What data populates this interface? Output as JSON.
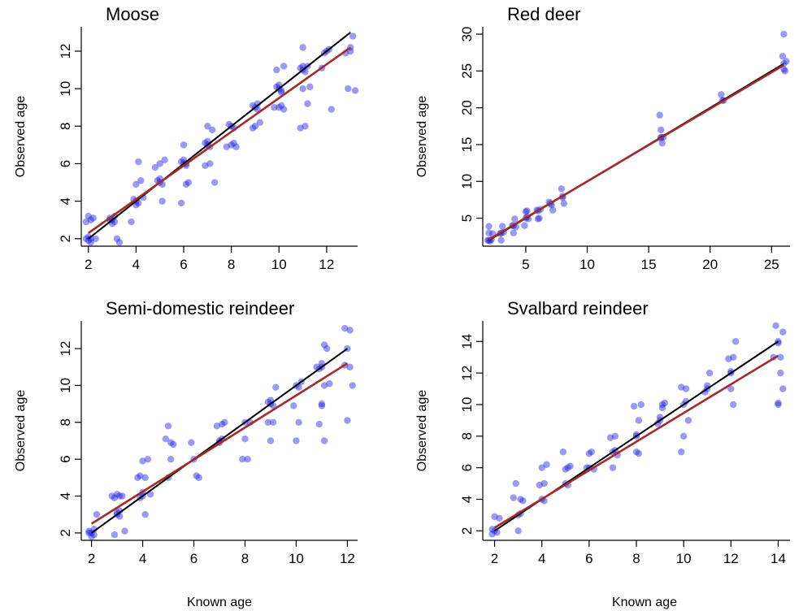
{
  "figure": {
    "xlabel_left": "Known age",
    "xlabel_right": "Known age",
    "colors": {
      "points": "#1f1fe6",
      "identity_line": "#000000",
      "fit_line": "#a52a2a"
    }
  },
  "chart_data": [
    {
      "type": "scatter",
      "title": "Moose",
      "xlabel": "",
      "ylabel": "Observed age",
      "xlim": [
        1.7,
        13.3
      ],
      "ylim": [
        1.6,
        13.3
      ],
      "xticks": [
        2,
        4,
        6,
        8,
        10,
        12
      ],
      "yticks": [
        2,
        4,
        6,
        8,
        10,
        12
      ],
      "identity_line": {
        "x": [
          2,
          13
        ],
        "y": [
          2,
          13
        ]
      },
      "fit_line": {
        "x": [
          2,
          13
        ],
        "y": [
          2.3,
          12.2
        ]
      },
      "points": [
        [
          1.9,
          2
        ],
        [
          2,
          1.9
        ],
        [
          2.1,
          2
        ],
        [
          1.9,
          2.9
        ],
        [
          2.1,
          3
        ],
        [
          2,
          3.2
        ],
        [
          2.2,
          3.1
        ],
        [
          2.3,
          2
        ],
        [
          2,
          2.1
        ],
        [
          2.1,
          1.8
        ],
        [
          3,
          3
        ],
        [
          3.1,
          2.9
        ],
        [
          2.9,
          3.1
        ],
        [
          3.2,
          2
        ],
        [
          3.3,
          1.8
        ],
        [
          3,
          2.8
        ],
        [
          3.1,
          3.2
        ],
        [
          2.9,
          3
        ],
        [
          4,
          4
        ],
        [
          4.1,
          3.9
        ],
        [
          3.9,
          4.1
        ],
        [
          4,
          4.9
        ],
        [
          4.2,
          5.1
        ],
        [
          4.1,
          6.1
        ],
        [
          3.8,
          2.9
        ],
        [
          4.3,
          4.2
        ],
        [
          4,
          3.8
        ],
        [
          5,
          5
        ],
        [
          5.1,
          4.9
        ],
        [
          4.9,
          5.1
        ],
        [
          5,
          6
        ],
        [
          5.2,
          6.2
        ],
        [
          5.1,
          4
        ],
        [
          4.8,
          5.8
        ],
        [
          5,
          5.2
        ],
        [
          6,
          6
        ],
        [
          6.1,
          5.9
        ],
        [
          5.9,
          6.1
        ],
        [
          6,
          7
        ],
        [
          6.2,
          5
        ],
        [
          6.1,
          4.9
        ],
        [
          5.9,
          3.9
        ],
        [
          6,
          6.2
        ],
        [
          6.1,
          6
        ],
        [
          7,
          7
        ],
        [
          7.1,
          6.9
        ],
        [
          6.9,
          7.1
        ],
        [
          7,
          8
        ],
        [
          7.2,
          7.8
        ],
        [
          7.1,
          6
        ],
        [
          6.9,
          5.9
        ],
        [
          7.3,
          5
        ],
        [
          7,
          7.2
        ],
        [
          8,
          8
        ],
        [
          8.1,
          7.9
        ],
        [
          7.9,
          8.1
        ],
        [
          8,
          7
        ],
        [
          8.2,
          6.9
        ],
        [
          8.1,
          7.1
        ],
        [
          7.8,
          6.9
        ],
        [
          9,
          9
        ],
        [
          9.1,
          8.9
        ],
        [
          8.9,
          9.1
        ],
        [
          9,
          8
        ],
        [
          9.2,
          8.2
        ],
        [
          8.9,
          7.9
        ],
        [
          9.1,
          9.2
        ],
        [
          10,
          10
        ],
        [
          10.1,
          9.9
        ],
        [
          9.9,
          10.1
        ],
        [
          10,
          9
        ],
        [
          10.2,
          8.9
        ],
        [
          10.1,
          9.1
        ],
        [
          9.9,
          11
        ],
        [
          10.2,
          11.2
        ],
        [
          10,
          10.2
        ],
        [
          10.1,
          9.8
        ],
        [
          9.8,
          9
        ],
        [
          11,
          11
        ],
        [
          11.1,
          10.9
        ],
        [
          10.9,
          11.1
        ],
        [
          11,
          10
        ],
        [
          11.2,
          9.2
        ],
        [
          11.1,
          8
        ],
        [
          10.9,
          7.9
        ],
        [
          11,
          12.2
        ],
        [
          11.2,
          11.2
        ],
        [
          11.3,
          10.1
        ],
        [
          11,
          11.2
        ],
        [
          12,
          12
        ],
        [
          12.1,
          12.1
        ],
        [
          11.9,
          11.9
        ],
        [
          12.2,
          8.9
        ],
        [
          11.8,
          11.1
        ],
        [
          13,
          12
        ],
        [
          13.1,
          12.8
        ],
        [
          12.9,
          10
        ],
        [
          13.2,
          9.9
        ],
        [
          12.8,
          11.9
        ],
        [
          13,
          12.2
        ]
      ]
    },
    {
      "type": "scatter",
      "title": "Red deer",
      "xlabel": "",
      "ylabel": "Observed age",
      "xlim": [
        1.5,
        26.5
      ],
      "ylim": [
        1.2,
        31
      ],
      "xticks": [
        5,
        10,
        15,
        20,
        25
      ],
      "yticks": [
        5,
        10,
        15,
        20,
        25,
        30
      ],
      "identity_line": {
        "x": [
          2,
          26
        ],
        "y": [
          2,
          26
        ]
      },
      "fit_line": {
        "x": [
          2,
          26
        ],
        "y": [
          2.1,
          25.8
        ]
      },
      "points": [
        [
          2,
          2
        ],
        [
          2.1,
          1.9
        ],
        [
          2,
          3
        ],
        [
          2.2,
          2.1
        ],
        [
          1.9,
          2
        ],
        [
          2,
          3.9
        ],
        [
          2.3,
          2.9
        ],
        [
          3,
          3
        ],
        [
          3.1,
          3.9
        ],
        [
          2.9,
          2.9
        ],
        [
          3,
          2
        ],
        [
          3.2,
          3.1
        ],
        [
          4,
          4
        ],
        [
          4.1,
          4.9
        ],
        [
          3.9,
          4
        ],
        [
          4,
          3
        ],
        [
          4.2,
          3.8
        ],
        [
          5,
          5
        ],
        [
          5.1,
          6
        ],
        [
          4.9,
          4
        ],
        [
          5,
          5.9
        ],
        [
          5.2,
          4.9
        ],
        [
          5.1,
          5.2
        ],
        [
          6,
          6
        ],
        [
          6.1,
          5
        ],
        [
          5.9,
          6.1
        ],
        [
          6,
          4.9
        ],
        [
          6.2,
          6.2
        ],
        [
          7,
          7
        ],
        [
          7.1,
          6.8
        ],
        [
          6.9,
          7.2
        ],
        [
          7.2,
          6.1
        ],
        [
          8,
          8
        ],
        [
          8.1,
          7
        ],
        [
          7.9,
          9
        ],
        [
          8,
          7.8
        ],
        [
          16,
          16
        ],
        [
          16.1,
          15.2
        ],
        [
          15.9,
          19
        ],
        [
          16,
          17
        ],
        [
          16.2,
          16
        ],
        [
          16,
          15.9
        ],
        [
          21,
          21
        ],
        [
          21.1,
          21
        ],
        [
          20.9,
          21.8
        ],
        [
          26,
          26
        ],
        [
          26.1,
          25
        ],
        [
          25.9,
          27
        ],
        [
          26,
          30
        ],
        [
          26.2,
          26.3
        ],
        [
          26,
          25.2
        ]
      ]
    },
    {
      "type": "scatter",
      "title": "Semi-domestic reindeer",
      "xlabel": "",
      "ylabel": "Observed age",
      "xlim": [
        1.6,
        12.4
      ],
      "ylim": [
        1.6,
        13.5
      ],
      "xticks": [
        2,
        4,
        6,
        8,
        10,
        12
      ],
      "yticks": [
        2,
        4,
        6,
        8,
        10,
        12
      ],
      "identity_line": {
        "x": [
          2,
          12
        ],
        "y": [
          2,
          12
        ]
      },
      "fit_line": {
        "x": [
          2,
          12
        ],
        "y": [
          2.5,
          11.2
        ]
      },
      "points": [
        [
          2,
          2
        ],
        [
          2.1,
          1.9
        ],
        [
          1.9,
          2.1
        ],
        [
          2,
          1.8
        ],
        [
          2.2,
          3
        ],
        [
          2.1,
          2.2
        ],
        [
          1.9,
          2
        ],
        [
          3,
          3
        ],
        [
          3.1,
          4
        ],
        [
          2.9,
          3.9
        ],
        [
          3,
          4.1
        ],
        [
          3.2,
          4
        ],
        [
          3.1,
          2.9
        ],
        [
          2.9,
          1.9
        ],
        [
          3.3,
          2.1
        ],
        [
          3,
          3.1
        ],
        [
          2.8,
          4
        ],
        [
          3.1,
          3.2
        ],
        [
          4,
          4
        ],
        [
          4.1,
          5
        ],
        [
          3.9,
          5.1
        ],
        [
          4,
          5.9
        ],
        [
          4.2,
          6
        ],
        [
          4.1,
          3
        ],
        [
          3.9,
          3.9
        ],
        [
          4.3,
          4.1
        ],
        [
          4,
          4.2
        ],
        [
          3.8,
          5
        ],
        [
          5,
          5
        ],
        [
          5.1,
          6.9
        ],
        [
          4.9,
          7.1
        ],
        [
          5,
          7.8
        ],
        [
          5.2,
          6.8
        ],
        [
          5.1,
          6
        ],
        [
          6,
          6
        ],
        [
          6.2,
          5
        ],
        [
          5.9,
          6.9
        ],
        [
          6.1,
          5.1
        ],
        [
          7,
          7
        ],
        [
          7.1,
          7.9
        ],
        [
          6.9,
          7.8
        ],
        [
          7,
          6.9
        ],
        [
          7.2,
          8
        ],
        [
          7.1,
          7.1
        ],
        [
          8,
          8
        ],
        [
          8.1,
          6
        ],
        [
          7.9,
          6
        ],
        [
          8.2,
          8
        ],
        [
          8,
          7.1
        ],
        [
          9,
          9
        ],
        [
          9.1,
          8
        ],
        [
          8.9,
          9.1
        ],
        [
          9,
          7
        ],
        [
          9.2,
          9.9
        ],
        [
          9.1,
          8.9
        ],
        [
          8.9,
          8
        ],
        [
          9,
          9.2
        ],
        [
          10,
          10
        ],
        [
          10.1,
          9.9
        ],
        [
          9.9,
          8.9
        ],
        [
          10,
          7
        ],
        [
          10.2,
          10.2
        ],
        [
          10.1,
          8
        ],
        [
          11,
          11
        ],
        [
          11.1,
          10
        ],
        [
          10.9,
          10.9
        ],
        [
          11,
          9
        ],
        [
          11.2,
          12
        ],
        [
          11.1,
          7
        ],
        [
          10.9,
          7.9
        ],
        [
          11,
          11.2
        ],
        [
          11.3,
          10.1
        ],
        [
          10.8,
          11
        ],
        [
          11.1,
          12.2
        ],
        [
          11,
          8.9
        ],
        [
          12,
          12
        ],
        [
          12.1,
          11
        ],
        [
          11.9,
          13.1
        ],
        [
          12,
          8.1
        ],
        [
          12.2,
          10
        ],
        [
          11.9,
          11.1
        ],
        [
          12.1,
          13
        ]
      ]
    },
    {
      "type": "scatter",
      "title": "Svalbard reindeer",
      "xlabel": "",
      "ylabel": "Observed age",
      "xlim": [
        1.5,
        14.5
      ],
      "ylim": [
        1.4,
        15.3
      ],
      "xticks": [
        2,
        4,
        6,
        8,
        10,
        12,
        14
      ],
      "yticks": [
        2,
        4,
        6,
        8,
        10,
        12,
        14
      ],
      "identity_line": {
        "x": [
          2,
          14
        ],
        "y": [
          2,
          14
        ]
      },
      "fit_line": {
        "x": [
          2,
          14
        ],
        "y": [
          2.2,
          13.1
        ]
      },
      "points": [
        [
          2,
          2
        ],
        [
          2.1,
          1.9
        ],
        [
          1.9,
          2.1
        ],
        [
          2,
          2.9
        ],
        [
          2.2,
          2.8
        ],
        [
          1.9,
          1.8
        ],
        [
          3,
          3
        ],
        [
          3.1,
          4
        ],
        [
          2.9,
          5
        ],
        [
          3,
          2
        ],
        [
          3.2,
          3.9
        ],
        [
          3.1,
          3.1
        ],
        [
          2.8,
          4.1
        ],
        [
          4,
          4
        ],
        [
          4.1,
          5
        ],
        [
          3.9,
          4.9
        ],
        [
          4,
          6
        ],
        [
          4.2,
          6.2
        ],
        [
          4.1,
          3.9
        ],
        [
          5,
          5
        ],
        [
          5.1,
          6
        ],
        [
          4.9,
          7
        ],
        [
          5,
          5.9
        ],
        [
          5.2,
          6.1
        ],
        [
          5.1,
          4.9
        ],
        [
          6,
          6
        ],
        [
          6.1,
          7
        ],
        [
          5.9,
          6
        ],
        [
          6.2,
          5.9
        ],
        [
          6,
          6.9
        ],
        [
          7,
          7
        ],
        [
          7.1,
          8
        ],
        [
          6.9,
          7.9
        ],
        [
          7,
          6
        ],
        [
          7.2,
          6.8
        ],
        [
          7.1,
          7.1
        ],
        [
          8,
          8
        ],
        [
          8.1,
          9
        ],
        [
          7.9,
          9.9
        ],
        [
          8,
          7
        ],
        [
          8.2,
          10
        ],
        [
          8.1,
          6.9
        ],
        [
          8,
          8.1
        ],
        [
          9,
          9
        ],
        [
          9.1,
          10
        ],
        [
          8.9,
          8.8
        ],
        [
          9,
          9.2
        ],
        [
          9.2,
          10.1
        ],
        [
          9.1,
          9.8
        ],
        [
          10,
          10
        ],
        [
          10.1,
          11
        ],
        [
          9.9,
          7
        ],
        [
          10,
          8
        ],
        [
          10.2,
          9
        ],
        [
          10.1,
          10.2
        ],
        [
          9.9,
          11.1
        ],
        [
          11,
          11
        ],
        [
          11.1,
          12
        ],
        [
          10.9,
          10.8
        ],
        [
          11,
          11.2
        ],
        [
          12,
          12
        ],
        [
          12.1,
          13
        ],
        [
          11.9,
          12.9
        ],
        [
          12,
          11
        ],
        [
          12.2,
          14
        ],
        [
          12.1,
          10
        ],
        [
          12,
          12.1
        ],
        [
          14,
          14
        ],
        [
          14.1,
          13
        ],
        [
          13.9,
          15
        ],
        [
          14,
          10
        ],
        [
          14.2,
          11
        ],
        [
          14.1,
          12
        ],
        [
          13.8,
          13
        ],
        [
          14,
          13.9
        ],
        [
          14.2,
          14.6
        ],
        [
          14,
          10.1
        ]
      ]
    }
  ]
}
